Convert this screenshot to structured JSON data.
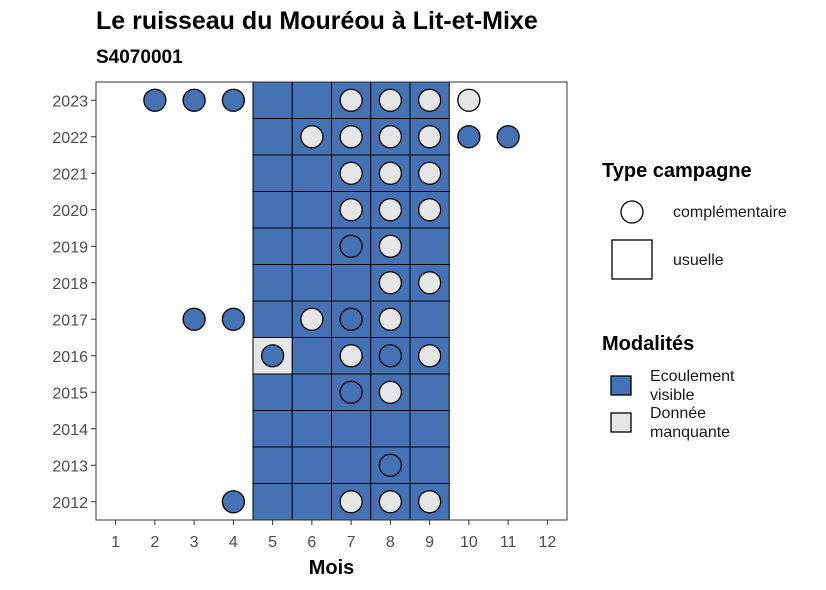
{
  "title": "Le ruisseau du Mouréou à Lit-et-Mixe",
  "subtitle": "S4070001",
  "chart_data": {
    "type": "heatmap",
    "title": "Le ruisseau du Mouréou à Lit-et-Mixe",
    "subtitle": "S4070001",
    "xlabel": "Mois",
    "ylabel": "",
    "x_ticks": [
      1,
      2,
      3,
      4,
      5,
      6,
      7,
      8,
      9,
      10,
      11,
      12
    ],
    "y_ticks": [
      2012,
      2013,
      2014,
      2015,
      2016,
      2017,
      2018,
      2019,
      2020,
      2021,
      2022,
      2023
    ],
    "grid": false,
    "colors": {
      "ecoulement_visible": "#4572b4",
      "donnee_manquante": "#e6e6e6",
      "outline": "#000000"
    },
    "legend": {
      "type_campagne": {
        "title": "Type campagne",
        "entries": [
          {
            "label": "complémentaire",
            "shape": "circle"
          },
          {
            "label": "usuelle",
            "shape": "square"
          }
        ]
      },
      "modalites": {
        "title": "Modalités",
        "entries": [
          {
            "label": "Ecoulement visible",
            "key": "ecoulement_visible"
          },
          {
            "label": "Donnée manquante",
            "key": "donnee_manquante"
          }
        ]
      },
      "position": "right"
    },
    "usuelle_months": [
      5,
      6,
      7,
      8,
      9
    ],
    "usuelle_years": [
      2012,
      2013,
      2014,
      2015,
      2016,
      2017,
      2018,
      2019,
      2020,
      2021,
      2022,
      2023
    ],
    "usuelle_overrides": [
      {
        "year": 2016,
        "month": 5,
        "modalite": "donnee_manquante"
      }
    ],
    "complementaire": [
      {
        "year": 2023,
        "month": 2,
        "modalite": "ecoulement_visible"
      },
      {
        "year": 2023,
        "month": 3,
        "modalite": "ecoulement_visible"
      },
      {
        "year": 2023,
        "month": 4,
        "modalite": "ecoulement_visible"
      },
      {
        "year": 2023,
        "month": 7,
        "modalite": "donnee_manquante"
      },
      {
        "year": 2023,
        "month": 8,
        "modalite": "donnee_manquante"
      },
      {
        "year": 2023,
        "month": 9,
        "modalite": "donnee_manquante"
      },
      {
        "year": 2023,
        "month": 10,
        "modalite": "donnee_manquante"
      },
      {
        "year": 2022,
        "month": 6,
        "modalite": "donnee_manquante"
      },
      {
        "year": 2022,
        "month": 7,
        "modalite": "donnee_manquante"
      },
      {
        "year": 2022,
        "month": 8,
        "modalite": "donnee_manquante"
      },
      {
        "year": 2022,
        "month": 9,
        "modalite": "donnee_manquante"
      },
      {
        "year": 2022,
        "month": 10,
        "modalite": "ecoulement_visible"
      },
      {
        "year": 2022,
        "month": 11,
        "modalite": "ecoulement_visible"
      },
      {
        "year": 2021,
        "month": 7,
        "modalite": "donnee_manquante"
      },
      {
        "year": 2021,
        "month": 8,
        "modalite": "donnee_manquante"
      },
      {
        "year": 2021,
        "month": 9,
        "modalite": "donnee_manquante"
      },
      {
        "year": 2020,
        "month": 7,
        "modalite": "donnee_manquante"
      },
      {
        "year": 2020,
        "month": 8,
        "modalite": "donnee_manquante"
      },
      {
        "year": 2020,
        "month": 9,
        "modalite": "donnee_manquante"
      },
      {
        "year": 2019,
        "month": 7,
        "modalite": "ecoulement_visible"
      },
      {
        "year": 2019,
        "month": 8,
        "modalite": "donnee_manquante"
      },
      {
        "year": 2018,
        "month": 8,
        "modalite": "donnee_manquante"
      },
      {
        "year": 2018,
        "month": 9,
        "modalite": "donnee_manquante"
      },
      {
        "year": 2017,
        "month": 3,
        "modalite": "ecoulement_visible"
      },
      {
        "year": 2017,
        "month": 4,
        "modalite": "ecoulement_visible"
      },
      {
        "year": 2017,
        "month": 6,
        "modalite": "donnee_manquante"
      },
      {
        "year": 2017,
        "month": 7,
        "modalite": "ecoulement_visible"
      },
      {
        "year": 2017,
        "month": 8,
        "modalite": "donnee_manquante"
      },
      {
        "year": 2016,
        "month": 5,
        "modalite": "ecoulement_visible"
      },
      {
        "year": 2016,
        "month": 7,
        "modalite": "donnee_manquante"
      },
      {
        "year": 2016,
        "month": 8,
        "modalite": "ecoulement_visible"
      },
      {
        "year": 2016,
        "month": 9,
        "modalite": "donnee_manquante"
      },
      {
        "year": 2015,
        "month": 7,
        "modalite": "ecoulement_visible"
      },
      {
        "year": 2015,
        "month": 8,
        "modalite": "donnee_manquante"
      },
      {
        "year": 2013,
        "month": 8,
        "modalite": "ecoulement_visible"
      },
      {
        "year": 2012,
        "month": 4,
        "modalite": "ecoulement_visible"
      },
      {
        "year": 2012,
        "month": 7,
        "modalite": "donnee_manquante"
      },
      {
        "year": 2012,
        "month": 8,
        "modalite": "donnee_manquante"
      },
      {
        "year": 2012,
        "month": 9,
        "modalite": "donnee_manquante"
      }
    ]
  }
}
